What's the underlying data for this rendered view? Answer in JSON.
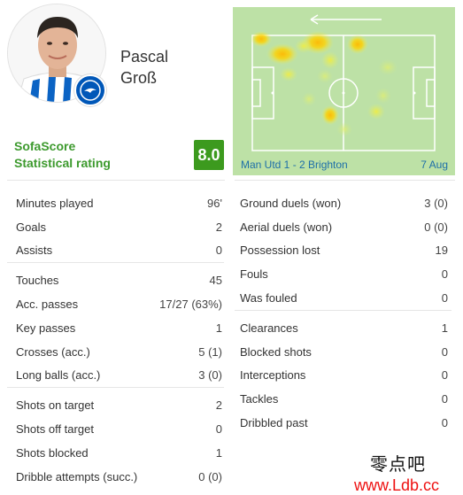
{
  "player": {
    "first_name": "Pascal",
    "last_name": "Groß"
  },
  "rating": {
    "label_line1": "SofaScore",
    "label_line2": "Statistical rating",
    "value": "8.0",
    "color": "#3c9a1e"
  },
  "match": {
    "label": "Man Utd 1 - 2 Brighton",
    "date": "7 Aug"
  },
  "heatmap": {
    "pitch_color": "#bde1a6",
    "arrow_icon": "arrow-left-icon"
  },
  "stats_left": [
    [
      {
        "label": "Minutes played",
        "value": "96'"
      },
      {
        "label": "Goals",
        "value": "2"
      },
      {
        "label": "Assists",
        "value": "0"
      }
    ],
    [
      {
        "label": "Touches",
        "value": "45"
      },
      {
        "label": "Acc. passes",
        "value": "17/27 (63%)"
      },
      {
        "label": "Key passes",
        "value": "1"
      },
      {
        "label": "Crosses (acc.)",
        "value": "5 (1)"
      },
      {
        "label": "Long balls (acc.)",
        "value": "3 (0)"
      }
    ],
    [
      {
        "label": "Shots on target",
        "value": "2"
      },
      {
        "label": "Shots off target",
        "value": "0"
      },
      {
        "label": "Shots blocked",
        "value": "1"
      },
      {
        "label": "Dribble attempts (succ.)",
        "value": "0 (0)"
      }
    ]
  ],
  "stats_right": [
    [
      {
        "label": "Ground duels (won)",
        "value": "3 (0)"
      },
      {
        "label": "Aerial duels (won)",
        "value": "0 (0)"
      },
      {
        "label": "Possession lost",
        "value": "19"
      },
      {
        "label": "Fouls",
        "value": "0"
      },
      {
        "label": "Was fouled",
        "value": "0"
      }
    ],
    [
      {
        "label": "Clearances",
        "value": "1"
      },
      {
        "label": "Blocked shots",
        "value": "0"
      },
      {
        "label": "Interceptions",
        "value": "0"
      },
      {
        "label": "Tackles",
        "value": "0"
      },
      {
        "label": "Dribbled past",
        "value": "0"
      }
    ]
  ],
  "watermark": {
    "cn": "零点吧",
    "url": "www.Ldb.cc"
  }
}
